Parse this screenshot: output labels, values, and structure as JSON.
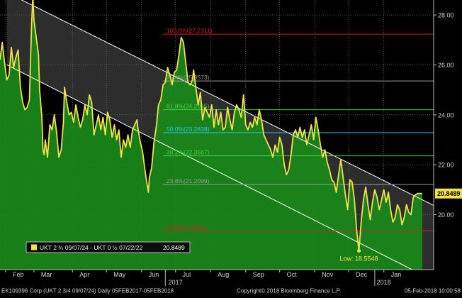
{
  "chart_data": {
    "type": "area",
    "colors": {
      "background": "#000000",
      "area_fill": "#1a8a1a",
      "line": "#f2e24a",
      "channel_fill": "#5a5a5a",
      "channel_line": "#ffffff",
      "grid": "#8a8a8a",
      "last_price_bg": "#f2e24a",
      "fib_red": "#d42020",
      "fib_grey": "#9a9a9a",
      "fib_green": "#3fd13f",
      "fib_cyan": "#22c8e8"
    },
    "y_axis": {
      "ylim": [
        17.8,
        28.6
      ],
      "ticks": [
        "20.00",
        "22.00",
        "24.00",
        "26.00",
        "28.00"
      ],
      "tick_values": [
        20,
        22,
        24,
        26,
        28
      ],
      "position": "right"
    },
    "x_axis": {
      "range_days": [
        -7,
        376
      ],
      "month_labels": [
        "Feb",
        "Mar",
        "Apr",
        "May",
        "Jun",
        "Jul",
        "Aug",
        "Sep",
        "Oct",
        "Nov",
        "Dec",
        "Jan"
      ],
      "month_days": [
        -2,
        23,
        57,
        87,
        118,
        148,
        179,
        210,
        240,
        271,
        301,
        332
      ],
      "year_labels": [
        {
          "text": "2017",
          "day": 148
        },
        {
          "text": "2018",
          "day": 332
        }
      ],
      "year_dividers": [
        139,
        324
      ]
    },
    "fib_levels": [
      {
        "label": "100.0%(27.2311)",
        "value": 27.2311,
        "color": "red"
      },
      {
        "label": "76.4%(25.3573)",
        "value": 25.3573,
        "color": "grey"
      },
      {
        "label": "61.8%(24.2065)",
        "value": 24.2065,
        "color": "green"
      },
      {
        "label": "50.0%(23.2838)",
        "value": 23.2838,
        "color": "cyan"
      },
      {
        "label": "38.2%(22.3567)",
        "value": 22.3567,
        "color": "green"
      },
      {
        "label": "23.6%(21.2099)",
        "value": 21.2099,
        "color": "grey"
      },
      {
        "label": "0.0%(19.3581)",
        "value": 19.3581,
        "color": "red"
      }
    ],
    "channel": {
      "upper": [
        [
          -1,
          28.9
        ],
        [
          357,
          20.8
        ]
      ],
      "lower": [
        [
          -1,
          26.0
        ],
        [
          357,
          17.8
        ]
      ],
      "x_end": 378
    },
    "series": [
      {
        "name": "UKT 2 ¾ 09/07/24 - UKT 0 ½ 07/22/22",
        "last_value": "20.8489",
        "points": [
          [
            -7,
            26.2
          ],
          [
            -5,
            26.9
          ],
          [
            -3,
            26.1
          ],
          [
            -1,
            25.4
          ],
          [
            1,
            25.6
          ],
          [
            3,
            26.7
          ],
          [
            5,
            25.9
          ],
          [
            7,
            26.3
          ],
          [
            9,
            26.6
          ],
          [
            11,
            25.1
          ],
          [
            13,
            24.5
          ],
          [
            15,
            24.2
          ],
          [
            17,
            24.3
          ],
          [
            19,
            24.6
          ],
          [
            20,
            26.2
          ],
          [
            21,
            27.7
          ],
          [
            22,
            28.7
          ],
          [
            23,
            27.8
          ],
          [
            25,
            27.1
          ],
          [
            27,
            26.4
          ],
          [
            28,
            25.0
          ],
          [
            30,
            23.9
          ],
          [
            31,
            22.6
          ],
          [
            32,
            22.4
          ],
          [
            33,
            23.0
          ],
          [
            35,
            22.3
          ],
          [
            37,
            23.6
          ],
          [
            39,
            23.4
          ],
          [
            41,
            24.0
          ],
          [
            43,
            23.3
          ],
          [
            45,
            22.3
          ],
          [
            47,
            22.6
          ],
          [
            49,
            23.7
          ],
          [
            50,
            25.1
          ],
          [
            52,
            24.5
          ],
          [
            54,
            24.0
          ],
          [
            56,
            24.1
          ],
          [
            58,
            23.7
          ],
          [
            60,
            24.4
          ],
          [
            62,
            23.9
          ],
          [
            64,
            23.5
          ],
          [
            66,
            23.8
          ],
          [
            68,
            24.4
          ],
          [
            70,
            24.0
          ],
          [
            72,
            24.8
          ],
          [
            74,
            24.5
          ],
          [
            76,
            23.2
          ],
          [
            78,
            23.6
          ],
          [
            80,
            24.0
          ],
          [
            82,
            23.4
          ],
          [
            84,
            23.9
          ],
          [
            86,
            23.2
          ],
          [
            88,
            24.1
          ],
          [
            90,
            23.8
          ],
          [
            92,
            23.1
          ],
          [
            94,
            23.6
          ],
          [
            96,
            23.0
          ],
          [
            98,
            23.4
          ],
          [
            100,
            22.3
          ],
          [
            102,
            23.0
          ],
          [
            104,
            22.7
          ],
          [
            106,
            23.2
          ],
          [
            108,
            22.7
          ],
          [
            110,
            23.4
          ],
          [
            112,
            23.6
          ],
          [
            114,
            23.8
          ],
          [
            115,
            23.4
          ],
          [
            117,
            22.9
          ],
          [
            119,
            22.5
          ],
          [
            121,
            21.8
          ],
          [
            123,
            21.2
          ],
          [
            124,
            20.9
          ],
          [
            125,
            21.5
          ],
          [
            127,
            21.9
          ],
          [
            129,
            22.9
          ],
          [
            131,
            23.5
          ],
          [
            133,
            24.4
          ],
          [
            135,
            24.6
          ],
          [
            137,
            25.2
          ],
          [
            139,
            25.3
          ],
          [
            141,
            25.9
          ],
          [
            143,
            25.6
          ],
          [
            145,
            25.2
          ],
          [
            147,
            25.7
          ],
          [
            149,
            25.8
          ],
          [
            151,
            26.4
          ],
          [
            153,
            27.1
          ],
          [
            155,
            26.9
          ],
          [
            157,
            26.1
          ],
          [
            159,
            25.3
          ],
          [
            161,
            25.2
          ],
          [
            163,
            25.4
          ],
          [
            164,
            25.8
          ],
          [
            166,
            25.1
          ],
          [
            168,
            24.4
          ],
          [
            170,
            24.9
          ],
          [
            172,
            23.8
          ],
          [
            174,
            24.3
          ],
          [
            176,
            24.1
          ],
          [
            178,
            23.9
          ],
          [
            180,
            24.4
          ],
          [
            182,
            23.5
          ],
          [
            184,
            24.2
          ],
          [
            186,
            23.6
          ],
          [
            188,
            24.1
          ],
          [
            190,
            23.4
          ],
          [
            192,
            23.5
          ],
          [
            194,
            24.3
          ],
          [
            196,
            23.8
          ],
          [
            198,
            23.4
          ],
          [
            200,
            24.1
          ],
          [
            202,
            24.4
          ],
          [
            204,
            24.2
          ],
          [
            206,
            23.9
          ],
          [
            208,
            24.8
          ],
          [
            209,
            24.3
          ],
          [
            210,
            23.6
          ],
          [
            212,
            23.4
          ],
          [
            214,
            23.7
          ],
          [
            216,
            23.5
          ],
          [
            218,
            23.9
          ],
          [
            220,
            23.6
          ],
          [
            222,
            24.2
          ],
          [
            224,
            23.8
          ],
          [
            226,
            23.2
          ],
          [
            228,
            23.0
          ],
          [
            230,
            22.8
          ],
          [
            232,
            22.6
          ],
          [
            234,
            22.3
          ],
          [
            236,
            22.8
          ],
          [
            238,
            22.5
          ],
          [
            240,
            23.1
          ],
          [
            242,
            22.8
          ],
          [
            244,
            22.0
          ],
          [
            246,
            21.6
          ],
          [
            248,
            21.8
          ],
          [
            250,
            22.4
          ],
          [
            252,
            23.2
          ],
          [
            254,
            23.4
          ],
          [
            256,
            23.1
          ],
          [
            258,
            23.5
          ],
          [
            260,
            23.1
          ],
          [
            262,
            23.4
          ],
          [
            264,
            22.8
          ],
          [
            266,
            23.2
          ],
          [
            268,
            23.6
          ],
          [
            270,
            23.0
          ],
          [
            272,
            23.9
          ],
          [
            274,
            23.4
          ],
          [
            276,
            22.8
          ],
          [
            278,
            22.3
          ],
          [
            280,
            22.6
          ],
          [
            282,
            22.1
          ],
          [
            284,
            21.8
          ],
          [
            286,
            21.4
          ],
          [
            288,
            21.3
          ],
          [
            290,
            20.9
          ],
          [
            292,
            21.6
          ],
          [
            294,
            22.2
          ],
          [
            296,
            21.5
          ],
          [
            298,
            20.8
          ],
          [
            300,
            20.2
          ],
          [
            302,
            21.4
          ],
          [
            304,
            21.3
          ],
          [
            306,
            20.6
          ],
          [
            308,
            19.4
          ],
          [
            310,
            18.55
          ],
          [
            312,
            19.7
          ],
          [
            314,
            20.6
          ],
          [
            316,
            21.1
          ],
          [
            318,
            20.4
          ],
          [
            320,
            19.8
          ],
          [
            322,
            20.5
          ],
          [
            324,
            21.0
          ],
          [
            326,
            20.7
          ],
          [
            328,
            20.2
          ],
          [
            330,
            20.6
          ],
          [
            332,
            21.0
          ],
          [
            334,
            20.5
          ],
          [
            336,
            20.9
          ],
          [
            338,
            20.2
          ],
          [
            340,
            19.7
          ],
          [
            342,
            19.9
          ],
          [
            344,
            20.4
          ],
          [
            346,
            20.2
          ],
          [
            348,
            19.6
          ],
          [
            350,
            19.9
          ],
          [
            352,
            20.4
          ],
          [
            354,
            20.1
          ],
          [
            356,
            20.0
          ],
          [
            358,
            20.7
          ],
          [
            360,
            20.8
          ],
          [
            362,
            20.85
          ],
          [
            364,
            20.85
          ],
          [
            366,
            20.8489
          ]
        ]
      }
    ],
    "low_annotation": {
      "text": "Low: 18.5548",
      "day": 310,
      "value": 18.5548
    },
    "legend": {
      "text": "UKT 2 ¾  09/07/24 - UKT 0 ½  07/22/22",
      "value": "20.8489",
      "placement": "bottom-left"
    },
    "footer": {
      "left": "EK109396 Corp (UKT 2 3/4 09/07/24)   Daily 05FEB2017-05FEB2018",
      "center": "Copyright© 2018 Bloomberg Finance L.P.",
      "right": "05-Feb-2018 10:00:58"
    }
  }
}
